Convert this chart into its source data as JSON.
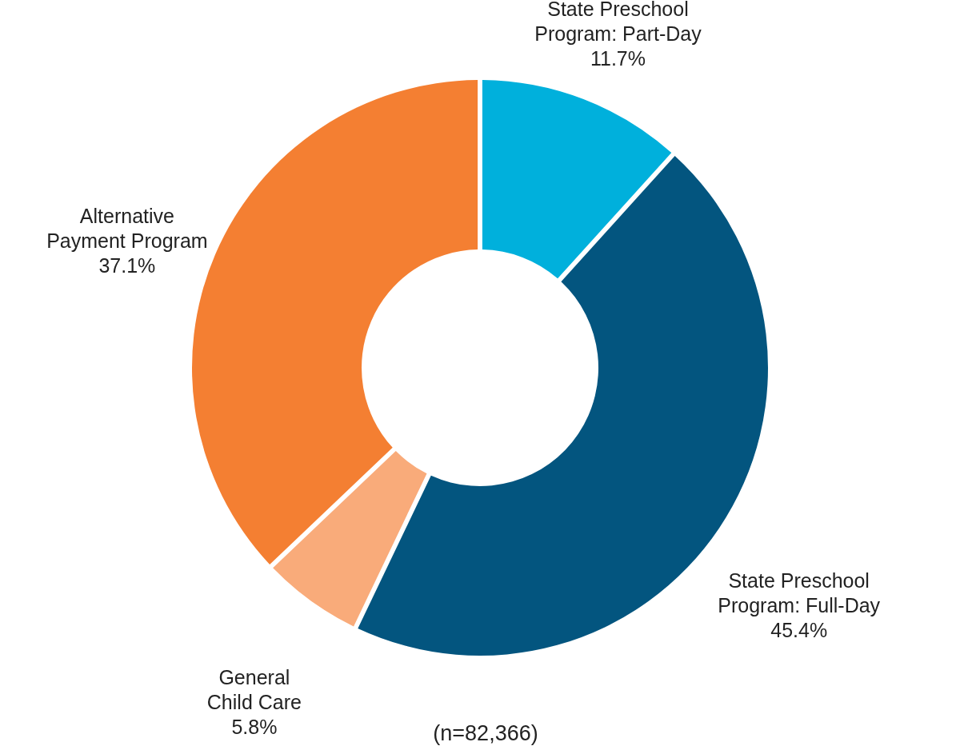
{
  "chart_data": {
    "type": "donut",
    "categories": [
      "State Preschool Program: Part-Day",
      "State Preschool Program: Full-Day",
      "General Child Care",
      "Alternative Payment Program"
    ],
    "values": [
      11.7,
      45.4,
      5.8,
      37.1
    ],
    "value_labels": [
      "11.7%",
      "45.4%",
      "5.8%",
      "37.1%"
    ],
    "colors": [
      "#00b0dc",
      "#03557f",
      "#f9ab7a",
      "#f47f32"
    ],
    "annotations": [
      "(n=82,366)"
    ]
  }
}
